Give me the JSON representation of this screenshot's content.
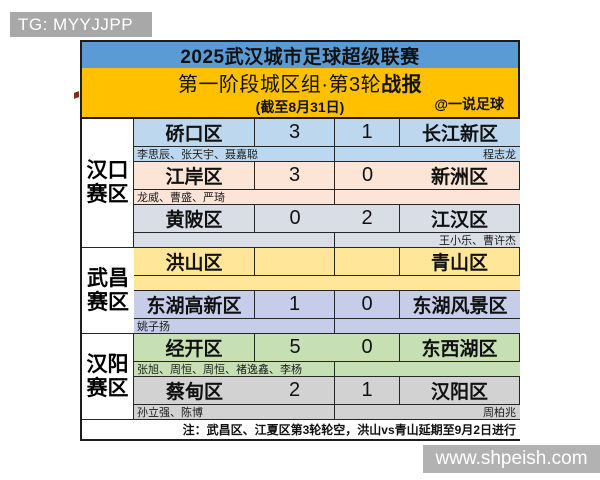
{
  "watermarks": {
    "top_left": "TG: MYYJJPP",
    "bottom_right": "www.shpeish.com"
  },
  "header": {
    "title": "2025武汉城市足球超级联赛",
    "subtitle_prefix": "第一阶段城区组·第3轮",
    "subtitle_bold": "战报",
    "date_note": "(截至8月31日)",
    "credit": "@一说足球"
  },
  "zones": [
    {
      "label": "汉口\n赛区"
    },
    {
      "label": "武昌\n赛区"
    },
    {
      "label": "汉阳\n赛区"
    }
  ],
  "matches": [
    {
      "home": "硚口区",
      "home_score": "3",
      "away_score": "1",
      "away": "长江新区",
      "home_scorers": "李思辰、张天宇、聂嘉聪",
      "away_scorers": "程志龙",
      "color": "#bdd7ee"
    },
    {
      "home": "江岸区",
      "home_score": "3",
      "away_score": "0",
      "away": "新洲区",
      "home_scorers": "龙威、曹盛、严琦",
      "away_scorers": "",
      "color": "#fce4d6"
    },
    {
      "home": "黄陂区",
      "home_score": "0",
      "away_score": "2",
      "away": "江汉区",
      "home_scorers": "",
      "away_scorers": "王小乐、曹许杰",
      "color": "#d9dde6"
    },
    {
      "home": "洪山区",
      "home_score": "",
      "away_score": "",
      "away": "青山区",
      "home_scorers": "",
      "away_scorers": "",
      "color": "#ffe699"
    },
    {
      "home": "东湖高新区",
      "home_score": "1",
      "away_score": "0",
      "away": "东湖风景区",
      "home_scorers": "姚子扬",
      "away_scorers": "",
      "color": "#c5cde8"
    },
    {
      "home": "经开区",
      "home_score": "5",
      "away_score": "0",
      "away": "东西湖区",
      "home_scorers": "张旭、周恒、周恒、褚逸鑫、李杨",
      "away_scorers": "",
      "color": "#c6e0b4"
    },
    {
      "home": "蔡甸区",
      "home_score": "2",
      "away_score": "1",
      "away": "汉阳区",
      "home_scorers": "孙立强、陈博",
      "away_scorers": "周柏兆",
      "color": "#d2d2d2"
    }
  ],
  "footer_note": "注：武昌区、江夏区第3轮轮空，洪山vs青山延期至9月2日进行",
  "colors": {
    "title_bar": "#5b9bd5",
    "sub_bar": "#ffc000",
    "badge_gray": "#a8a8a8",
    "site_gray": "#b2b2b2",
    "border": "#1c1c1c"
  }
}
